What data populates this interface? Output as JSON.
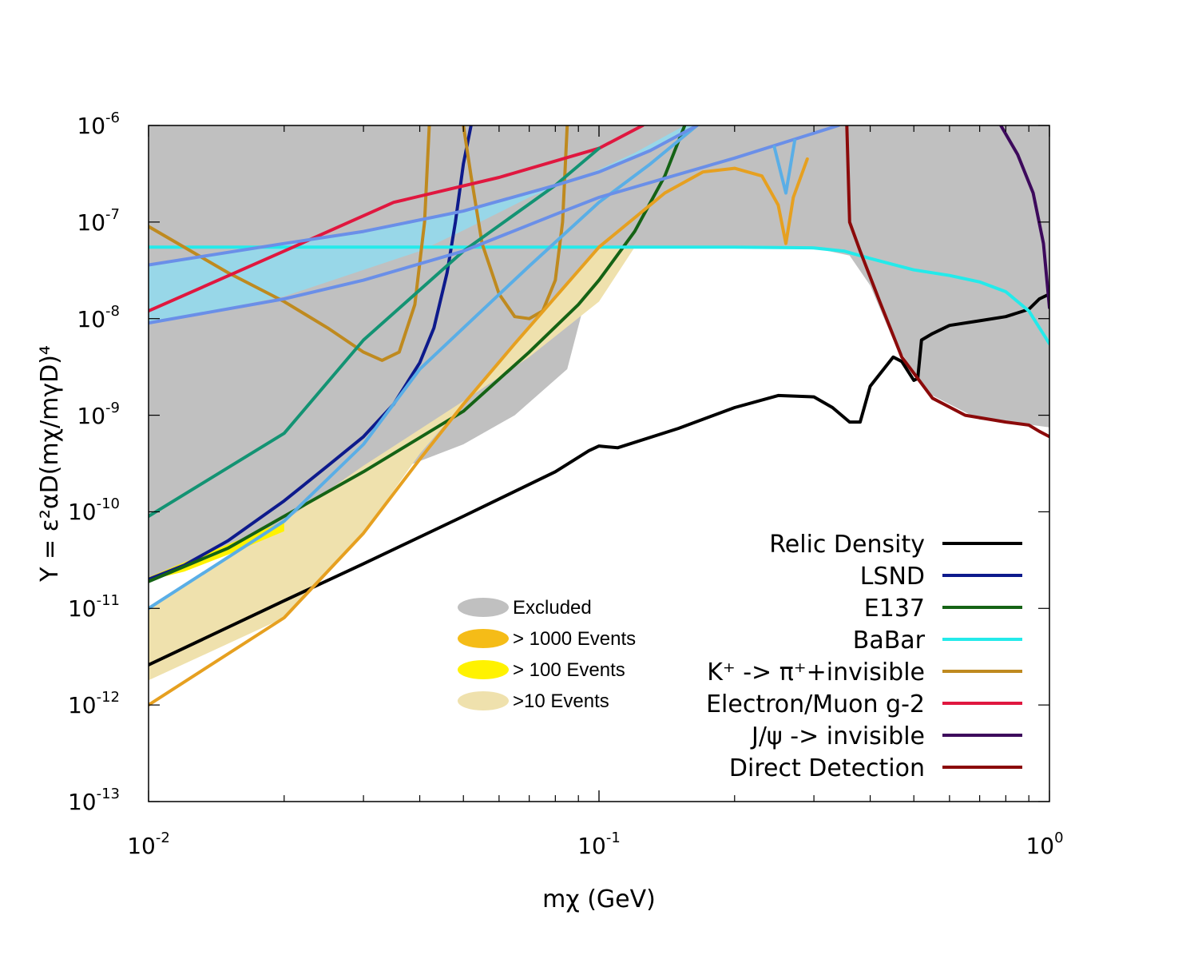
{
  "chart_data": {
    "type": "line",
    "xscale": "log",
    "yscale": "log",
    "xlim": [
      0.01,
      1.0
    ],
    "ylim": [
      1e-13,
      1e-06
    ],
    "xlabel": "mχ (GeV)",
    "ylabel": "Y = ε²αD(mχ/mγD)⁴",
    "x_ticks": [
      {
        "base": "10",
        "exp": "-2"
      },
      {
        "base": "10",
        "exp": "-1"
      },
      {
        "base": "10",
        "exp": "0"
      }
    ],
    "y_ticks": [
      {
        "base": "10",
        "exp": "-13"
      },
      {
        "base": "10",
        "exp": "-12"
      },
      {
        "base": "10",
        "exp": "-11"
      },
      {
        "base": "10",
        "exp": "-10"
      },
      {
        "base": "10",
        "exp": "-9"
      },
      {
        "base": "10",
        "exp": "-8"
      },
      {
        "base": "10",
        "exp": "-7"
      },
      {
        "base": "10",
        "exp": "-6"
      }
    ],
    "regions": [
      {
        "name": "Excluded",
        "color": "#c0c0c0",
        "points": [
          [
            0.01,
            1e-06
          ],
          [
            0.01,
            2e-11
          ],
          [
            0.012,
            3e-11
          ],
          [
            0.016,
            5e-11
          ],
          [
            0.02,
            8e-11
          ],
          [
            0.03,
            2e-10
          ],
          [
            0.05,
            5e-10
          ],
          [
            0.065,
            1e-09
          ],
          [
            0.085,
            3e-09
          ],
          [
            0.1,
            5.5e-08
          ],
          [
            0.2,
            5.5e-08
          ],
          [
            0.3,
            5.4e-08
          ],
          [
            0.36,
            4.5e-08
          ],
          [
            0.4,
            2.2e-08
          ],
          [
            0.45,
            6e-09
          ],
          [
            0.5,
            2.8e-09
          ],
          [
            0.55,
            1.6e-09
          ],
          [
            0.7,
            9e-10
          ],
          [
            0.8,
            8.6e-10
          ],
          [
            0.9,
            8e-10
          ],
          [
            1.0,
            7.5e-10
          ],
          [
            1.0,
            1e-06
          ]
        ]
      },
      {
        "name": "Blue band",
        "color": "#98d7e8",
        "points": [
          [
            0.01,
            3.6e-08
          ],
          [
            0.02,
            6e-08
          ],
          [
            0.03,
            8e-08
          ],
          [
            0.05,
            1.3e-07
          ],
          [
            0.08,
            2.4e-07
          ],
          [
            0.1,
            3.3e-07
          ],
          [
            0.13,
            5.5e-07
          ],
          [
            0.165,
            1e-06
          ],
          [
            0.155,
            1e-06
          ],
          [
            0.12,
            5.2e-07
          ],
          [
            0.1,
            3.5e-07
          ],
          [
            0.07,
            1.8e-07
          ],
          [
            0.05,
            8.2e-08
          ],
          [
            0.04,
            5e-08
          ],
          [
            0.03,
            3.2e-08
          ],
          [
            0.02,
            1.7e-08
          ],
          [
            0.015,
            1.3e-08
          ],
          [
            0.01,
            9e-09
          ]
        ]
      },
      {
        "name": ">10 Events",
        "color": "#efe1ad",
        "points": [
          [
            0.01,
            1e-11
          ],
          [
            0.02,
            8e-11
          ],
          [
            0.03,
            3e-10
          ],
          [
            0.05,
            1.4e-09
          ],
          [
            0.07,
            4e-09
          ],
          [
            0.1,
            1.5e-08
          ],
          [
            0.12,
            5.5e-08
          ],
          [
            0.1,
            5.5e-08
          ],
          [
            0.065,
            5.5e-09
          ],
          [
            0.04,
            4e-10
          ],
          [
            0.03,
            6e-11
          ],
          [
            0.02,
            8e-12
          ],
          [
            0.01,
            1.8e-12
          ]
        ]
      },
      {
        "name": "> 100 Events",
        "color": "#fff200",
        "points": [
          [
            0.01,
            1.95e-11
          ],
          [
            0.012,
            2.4e-11
          ],
          [
            0.015,
            3.6e-11
          ],
          [
            0.02,
            6.3e-11
          ],
          [
            0.02,
            8e-11
          ],
          [
            0.015,
            4.6e-11
          ],
          [
            0.012,
            3e-11
          ],
          [
            0.01,
            2.1e-11
          ]
        ]
      }
    ],
    "series": [
      {
        "name": "Relic Density",
        "legend": true,
        "color": "#000000",
        "points": [
          [
            0.01,
            2.6e-12
          ],
          [
            0.02,
            1.2e-11
          ],
          [
            0.03,
            2.9e-11
          ],
          [
            0.05,
            9e-11
          ],
          [
            0.08,
            2.6e-10
          ],
          [
            0.095,
            4.3e-10
          ],
          [
            0.1,
            4.8e-10
          ],
          [
            0.11,
            4.6e-10
          ],
          [
            0.15,
            7.3e-10
          ],
          [
            0.2,
            1.2e-09
          ],
          [
            0.25,
            1.6e-09
          ],
          [
            0.3,
            1.55e-09
          ],
          [
            0.33,
            1.2e-09
          ],
          [
            0.36,
            8.5e-10
          ],
          [
            0.38,
            8.5e-10
          ],
          [
            0.4,
            2e-09
          ],
          [
            0.45,
            4e-09
          ],
          [
            0.47,
            3.6e-09
          ],
          [
            0.5,
            2.3e-09
          ],
          [
            0.51,
            2.4e-09
          ],
          [
            0.52,
            6e-09
          ],
          [
            0.55,
            7e-09
          ],
          [
            0.6,
            8.5e-09
          ],
          [
            0.7,
            9.5e-09
          ],
          [
            0.8,
            1.05e-08
          ],
          [
            0.9,
            1.25e-08
          ],
          [
            0.95,
            1.6e-08
          ],
          [
            1.0,
            1.8e-08
          ]
        ]
      },
      {
        "name": "LSND",
        "legend": true,
        "color": "#0d1a8c",
        "points": [
          [
            0.01,
            2e-11
          ],
          [
            0.012,
            2.8e-11
          ],
          [
            0.015,
            5e-11
          ],
          [
            0.02,
            1.3e-10
          ],
          [
            0.025,
            3e-10
          ],
          [
            0.03,
            6e-10
          ],
          [
            0.035,
            1.3e-09
          ],
          [
            0.04,
            3.5e-09
          ],
          [
            0.043,
            8e-09
          ],
          [
            0.046,
            3e-08
          ],
          [
            0.048,
            1e-07
          ],
          [
            0.05,
            4e-07
          ],
          [
            0.052,
            1e-06
          ]
        ]
      },
      {
        "name": "E137",
        "legend": true,
        "color": "#156315",
        "points": [
          [
            0.01,
            1.9e-11
          ],
          [
            0.015,
            4.2e-11
          ],
          [
            0.02,
            9e-11
          ],
          [
            0.03,
            2.6e-10
          ],
          [
            0.05,
            1.1e-09
          ],
          [
            0.07,
            4.5e-09
          ],
          [
            0.09,
            1.4e-08
          ],
          [
            0.1,
            2.5e-08
          ],
          [
            0.12,
            8e-08
          ],
          [
            0.14,
            3e-07
          ],
          [
            0.155,
            1e-06
          ]
        ]
      },
      {
        "name": "BaBar",
        "legend": true,
        "color": "#24eaea",
        "points": [
          [
            0.01,
            5.5e-08
          ],
          [
            0.05,
            5.5e-08
          ],
          [
            0.1,
            5.5e-08
          ],
          [
            0.2,
            5.5e-08
          ],
          [
            0.3,
            5.4e-08
          ],
          [
            0.35,
            5e-08
          ],
          [
            0.4,
            4.2e-08
          ],
          [
            0.5,
            3.2e-08
          ],
          [
            0.6,
            2.8e-08
          ],
          [
            0.7,
            2.4e-08
          ],
          [
            0.8,
            1.9e-08
          ],
          [
            0.9,
            1.2e-08
          ],
          [
            1.0,
            5.5e-09
          ]
        ]
      },
      {
        "name": "K+ -> π++invisible",
        "legend": true,
        "color": "#bf8a1f",
        "points": [
          [
            0.01,
            9e-08
          ],
          [
            0.015,
            3e-08
          ],
          [
            0.02,
            1.5e-08
          ],
          [
            0.025,
            8e-09
          ],
          [
            0.03,
            4.5e-09
          ],
          [
            0.033,
            3.7e-09
          ],
          [
            0.036,
            4.5e-09
          ],
          [
            0.039,
            1.4e-08
          ],
          [
            0.041,
            1e-07
          ],
          [
            0.042,
            1e-06
          ]
        ]
      },
      {
        "name": "K+ right branch",
        "legend": false,
        "color": "#bf8a1f",
        "points": [
          [
            0.05,
            1e-06
          ],
          [
            0.052,
            3e-07
          ],
          [
            0.055,
            6e-08
          ],
          [
            0.06,
            1.8e-08
          ],
          [
            0.065,
            1.05e-08
          ],
          [
            0.07,
            1e-08
          ],
          [
            0.075,
            1.2e-08
          ],
          [
            0.08,
            2.5e-08
          ],
          [
            0.083,
            1e-07
          ],
          [
            0.085,
            1e-06
          ]
        ]
      },
      {
        "name": "Electron/Muon g-2",
        "legend": true,
        "color": "#e0173f",
        "points": [
          [
            0.01,
            1.2e-08
          ],
          [
            0.02,
            5e-08
          ],
          [
            0.035,
            1.6e-07
          ],
          [
            0.06,
            2.9e-07
          ],
          [
            0.1,
            5.8e-07
          ],
          [
            0.125,
            1e-06
          ]
        ]
      },
      {
        "name": "J/ψ -> invisible",
        "legend": true,
        "color": "#3d0a5c",
        "points": [
          [
            0.78,
            1e-06
          ],
          [
            0.85,
            5e-07
          ],
          [
            0.92,
            2e-07
          ],
          [
            0.97,
            6e-08
          ],
          [
            1.0,
            1.3e-08
          ]
        ]
      },
      {
        "name": "Direct Detection",
        "legend": true,
        "color": "#8b0a0a",
        "points": [
          [
            0.355,
            1e-06
          ],
          [
            0.36,
            1e-07
          ],
          [
            0.38,
            5e-08
          ],
          [
            0.42,
            1.5e-08
          ],
          [
            0.47,
            4e-09
          ],
          [
            0.55,
            1.5e-09
          ],
          [
            0.65,
            1e-09
          ],
          [
            0.8,
            8.5e-10
          ],
          [
            0.9,
            7.9e-10
          ],
          [
            0.95,
            6.8e-10
          ],
          [
            1.0,
            6e-10
          ]
        ]
      },
      {
        "name": "Teal line",
        "legend": false,
        "color": "#139373",
        "points": [
          [
            0.01,
            9e-11
          ],
          [
            0.02,
            6.5e-10
          ],
          [
            0.03,
            6e-09
          ],
          [
            0.05,
            5e-08
          ],
          [
            0.08,
            2.4e-07
          ],
          [
            0.1,
            5.8e-07
          ]
        ]
      },
      {
        "name": "Light blue line",
        "legend": false,
        "color": "#5aaee6",
        "points": [
          [
            0.01,
            1e-11
          ],
          [
            0.02,
            8e-11
          ],
          [
            0.03,
            5e-10
          ],
          [
            0.04,
            3e-09
          ],
          [
            0.05,
            8e-09
          ],
          [
            0.07,
            3.5e-08
          ],
          [
            0.1,
            1.6e-07
          ],
          [
            0.13,
            4e-07
          ],
          [
            0.165,
            1e-06
          ]
        ]
      },
      {
        "name": "Band upper edge",
        "legend": false,
        "color": "#6a8fe8",
        "points": [
          [
            0.01,
            3.6e-08
          ],
          [
            0.02,
            6e-08
          ],
          [
            0.03,
            8e-08
          ],
          [
            0.05,
            1.3e-07
          ],
          [
            0.08,
            2.4e-07
          ],
          [
            0.1,
            3.3e-07
          ],
          [
            0.13,
            5.5e-07
          ],
          [
            0.165,
            1e-06
          ]
        ]
      },
      {
        "name": "Band lower edge",
        "legend": false,
        "color": "#6a8fe8",
        "points": [
          [
            0.01,
            9e-09
          ],
          [
            0.02,
            1.6e-08
          ],
          [
            0.03,
            2.5e-08
          ],
          [
            0.05,
            5e-08
          ],
          [
            0.08,
            1.2e-07
          ],
          [
            0.1,
            1.8e-07
          ],
          [
            0.2,
            4.6e-07
          ],
          [
            0.34,
            1e-06
          ]
        ]
      },
      {
        "name": "Orange line",
        "legend": false,
        "color": "#e6a020",
        "points": [
          [
            0.01,
            1e-12
          ],
          [
            0.02,
            8e-12
          ],
          [
            0.03,
            6e-11
          ],
          [
            0.04,
            3.5e-10
          ],
          [
            0.05,
            1.3e-09
          ],
          [
            0.065,
            5.5e-09
          ],
          [
            0.1,
            5.5e-08
          ],
          [
            0.14,
            2e-07
          ],
          [
            0.17,
            3.3e-07
          ],
          [
            0.2,
            3.6e-07
          ],
          [
            0.23,
            3e-07
          ],
          [
            0.25,
            1.5e-07
          ],
          [
            0.26,
            6e-08
          ],
          [
            0.27,
            1.8e-07
          ],
          [
            0.29,
            4.5e-07
          ]
        ]
      },
      {
        "name": "Sky dip",
        "legend": false,
        "color": "#5aaee6",
        "points": [
          [
            0.245,
            6e-07
          ],
          [
            0.26,
            2e-07
          ],
          [
            0.272,
            7e-07
          ]
        ]
      }
    ],
    "legend_lines": [
      {
        "label": "Relic Density",
        "color": "#000000"
      },
      {
        "label": "LSND",
        "color": "#0d1a8c"
      },
      {
        "label": "E137",
        "color": "#156315"
      },
      {
        "label": "BaBar",
        "color": "#24eaea"
      },
      {
        "label": "K⁺ -> π⁺+invisible",
        "color": "#bf8a1f"
      },
      {
        "label": "Electron/Muon g-2",
        "color": "#e0173f"
      },
      {
        "label": "J/ψ -> invisible",
        "color": "#3d0a5c"
      },
      {
        "label": "Direct Detection",
        "color": "#8b0a0a"
      }
    ],
    "legend_fills": [
      {
        "label": "Excluded",
        "color": "#c0c0c0"
      },
      {
        "label": "> 1000 Events",
        "color": "#f5bc17"
      },
      {
        "label": "> 100 Events",
        "color": "#fff200"
      },
      {
        "label": ">10 Events",
        "color": "#efe1ad"
      }
    ],
    "legend_position": "bottom-right"
  }
}
